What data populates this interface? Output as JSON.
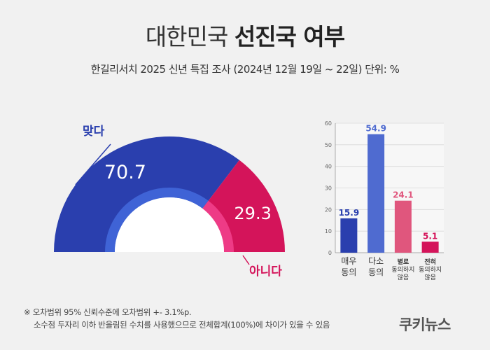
{
  "title_light": "대한민국",
  "title_bold": "선진국 여부",
  "subtitle": "한길리서치 2025 신년 특집 조사 (2024년 12월 19일 ~ 22일) 단위: %",
  "colors": {
    "yes": "#2a3fae",
    "no": "#d4145a",
    "bar1": "#2a3fae",
    "bar2": "#4f6bd0",
    "bar3": "#e0567d",
    "bar4": "#d4145a"
  },
  "chart_data": [
    {
      "type": "pie",
      "variant": "semicircle",
      "slices": [
        {
          "label": "맞다",
          "value": 70.7,
          "value_label": "70.7",
          "color": "#2a3fae"
        },
        {
          "label": "아니다",
          "value": 29.3,
          "value_label": "29.3",
          "color": "#d4145a"
        }
      ]
    },
    {
      "type": "bar",
      "categories": [
        [
          "매우",
          "동의"
        ],
        [
          "다소",
          "동의"
        ],
        [
          "별로",
          "동의하지",
          "않음"
        ],
        [
          "전혀",
          "동의하지",
          "않음"
        ]
      ],
      "values": [
        15.9,
        54.9,
        24.1,
        5.1
      ],
      "value_labels": [
        "15.9",
        "54.9",
        "24.1",
        "5.1"
      ],
      "colors": [
        "#2a3fae",
        "#4f6bd0",
        "#e0567d",
        "#d4145a"
      ],
      "ylim": [
        0,
        60
      ],
      "yticks": [
        0,
        10,
        20,
        30,
        40,
        50,
        60
      ],
      "grid": true
    }
  ],
  "footnote": {
    "line1": "※ 오차범위 95% 신뢰수준에 오차범위 +- 3.1%p.",
    "line2": "소수점 두자리 이하 반올림된 수치를 사용했으므로 전체합계(100%)에 차이가 있을 수 있음"
  },
  "logo": "쿠키뉴스"
}
